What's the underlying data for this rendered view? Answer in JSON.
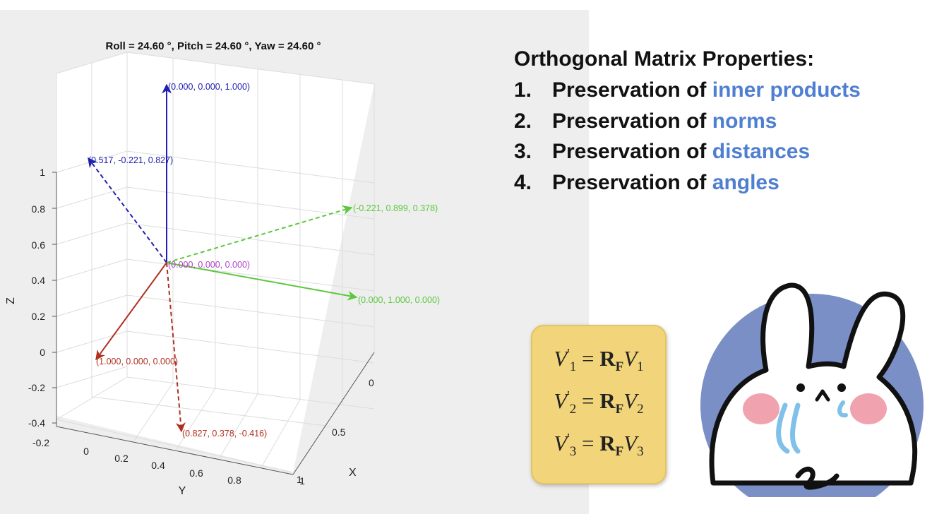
{
  "plot": {
    "title": "Roll = 24.60 °,  Pitch = 24.60 °,  Yaw = 24.60 °",
    "z_axis_label": "Z",
    "y_axis_label": "Y",
    "x_axis_label": "X",
    "z_ticks": [
      "1",
      "0.8",
      "0.6",
      "0.4",
      "0.2",
      "0",
      "-0.2",
      "-0.4"
    ],
    "y_ticks": [
      "-0.2",
      "0",
      "0.2",
      "0.4",
      "0.6",
      "0.8",
      "1"
    ],
    "x_ticks": [
      "0",
      "0.5",
      "1"
    ],
    "vectors": [
      {
        "label": "(0.000, 0.000, 1.000)",
        "color": "#2020b0",
        "style": "solid"
      },
      {
        "label": "(0.517, -0.221, 0.827)",
        "color": "#2020b0",
        "style": "dashed"
      },
      {
        "label": "(-0.221, 0.899, 0.378)",
        "color": "#5cc83c",
        "style": "dashed"
      },
      {
        "label": "(0.000, 1.000, 0.000)",
        "color": "#5cc83c",
        "style": "solid"
      },
      {
        "label": "(1.000, 0.000, 0.000)",
        "color": "#b03020",
        "style": "solid"
      },
      {
        "label": "(0.827, 0.378, -0.416)",
        "color": "#b03020",
        "style": "dashed"
      }
    ],
    "origin_label": "(0.000, 0.000, 0.000)",
    "origin_color": "#b040c8"
  },
  "properties": {
    "heading": "Orthogonal Matrix Properties:",
    "items": [
      {
        "num": "1.",
        "text": "Preservation of",
        "highlight": "inner products"
      },
      {
        "num": "2.",
        "text": "Preservation of",
        "highlight": "norms"
      },
      {
        "num": "3.",
        "text": "Preservation of",
        "highlight": "distances"
      },
      {
        "num": "4.",
        "text": "Preservation of",
        "highlight": "angles"
      }
    ],
    "highlight_color": "#4f7fd0"
  },
  "equations": {
    "lhs": "V",
    "prime": "'",
    "rhs_matrix": "R",
    "rhs_matrix_sub": "F",
    "rows": [
      "1",
      "2",
      "3"
    ]
  }
}
